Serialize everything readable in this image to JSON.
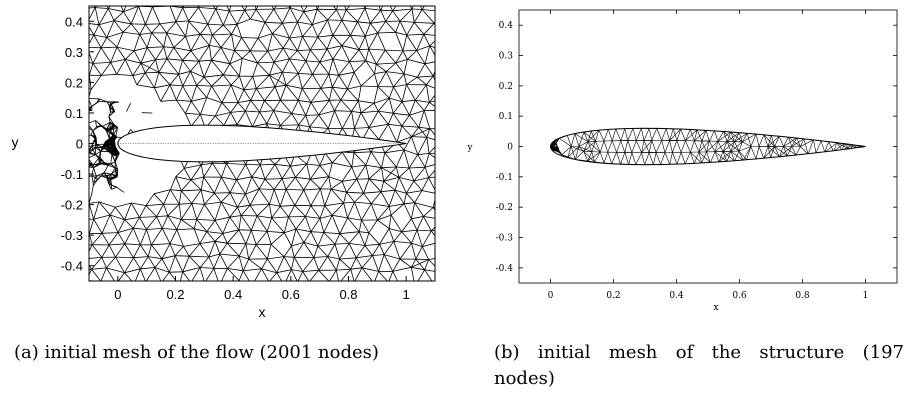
{
  "chart_data": [
    {
      "type": "mesh",
      "xlabel": "x",
      "ylabel": "y",
      "xlim": [
        -0.1,
        1.1
      ],
      "ylim": [
        -0.45,
        0.45
      ],
      "x_ticks": [
        "0",
        "0.2",
        "0.4",
        "0.6",
        "0.8",
        "1"
      ],
      "y_ticks": [
        "0.4",
        "0.3",
        "0.2",
        "0.1",
        "0",
        "-0.1",
        "-0.2",
        "-0.3",
        "-0.4"
      ],
      "mesh_color": "#000000",
      "caption": "(a) initial mesh of the flow (2001 nodes)"
    },
    {
      "type": "mesh",
      "xlabel": "x",
      "ylabel": "y",
      "xlim": [
        -0.1,
        1.1
      ],
      "ylim": [
        -0.45,
        0.45
      ],
      "x_ticks": [
        "0",
        "0.2",
        "0.4",
        "0.6",
        "0.8",
        "1"
      ],
      "y_ticks": [
        "0.4",
        "0.3",
        "0.2",
        "0.1",
        "0",
        "-0.1",
        "-0.2",
        "-0.3",
        "-0.4"
      ],
      "mesh_color": "#000000",
      "caption_line1": "(b) initial mesh of the structure (197",
      "caption_line2": "nodes)"
    }
  ]
}
